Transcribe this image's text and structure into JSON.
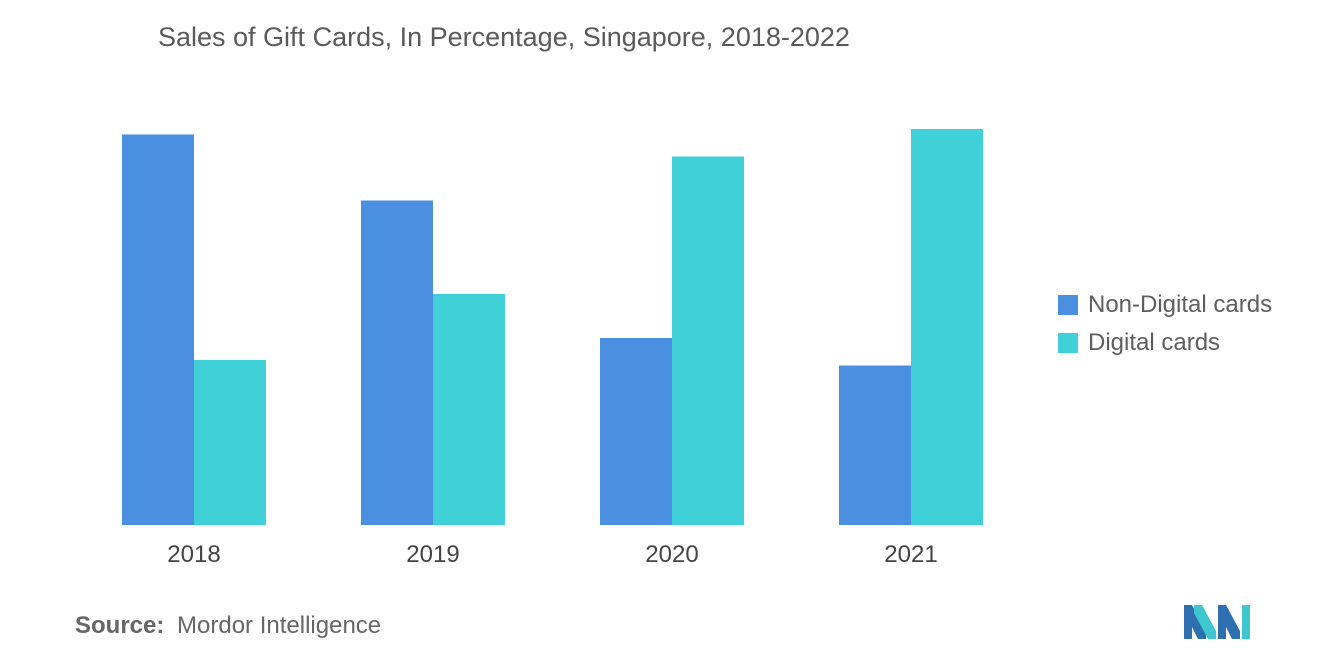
{
  "title": "Sales of Gift Cards, In Percentage, Singapore, 2018-2022",
  "chart_data": {
    "type": "bar",
    "title": "Sales of Gift Cards, In Percentage, Singapore, 2018-2022",
    "categories": [
      "2018",
      "2019",
      "2020",
      "2021"
    ],
    "series": [
      {
        "name": "Non-Digital cards",
        "color": "#4a8fe0",
        "values": [
          71,
          59,
          34,
          29
        ]
      },
      {
        "name": "Digital cards",
        "color": "#40d1d8",
        "values": [
          30,
          42,
          67,
          72
        ]
      }
    ],
    "xlabel": "",
    "ylabel": "",
    "ylim": [
      0,
      80
    ],
    "grid": false,
    "legend_position": "right"
  },
  "source": {
    "label": "Source:",
    "value": "Mordor Intelligence"
  },
  "logo": {
    "icon": "mordor-intelligence-logo",
    "colors": [
      "#2e6fb0",
      "#3fc7cf"
    ]
  }
}
